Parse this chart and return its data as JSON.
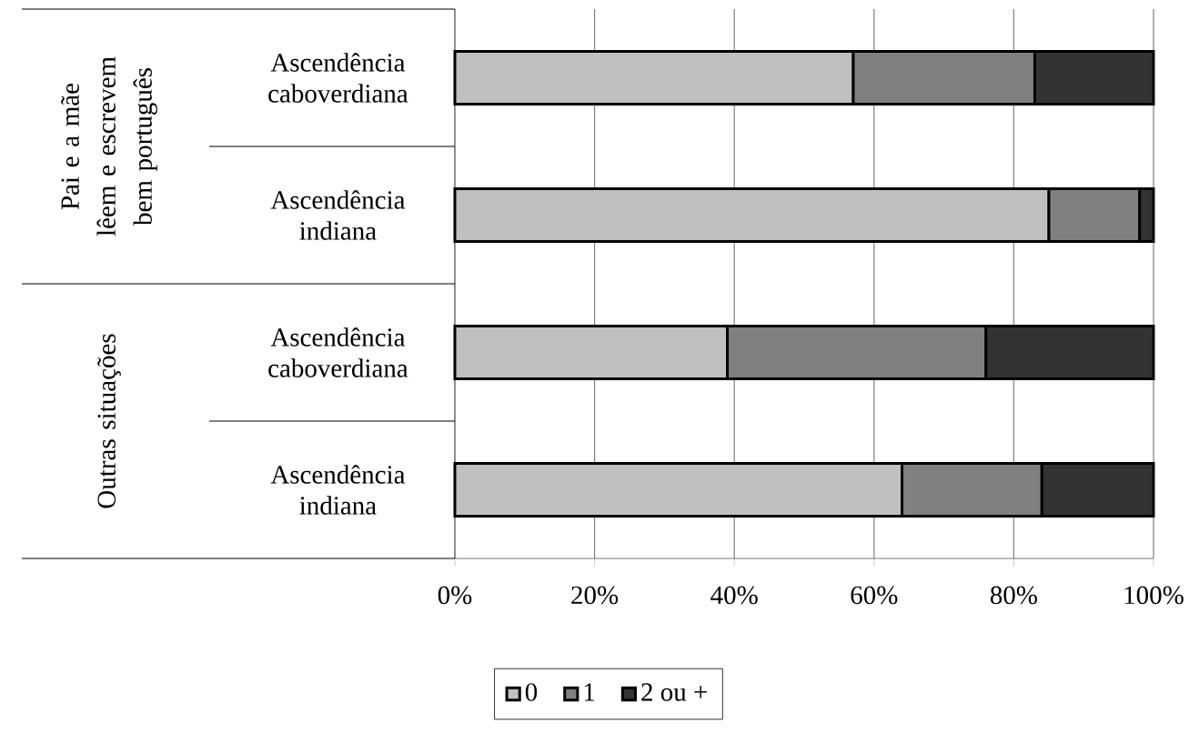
{
  "chart_data": {
    "type": "bar",
    "orientation": "horizontal",
    "stacked": true,
    "categories": [
      "Ascendência caboverdiana",
      "Ascendência indiana",
      "Ascendência caboverdiana",
      "Ascendência indiana"
    ],
    "series": [
      {
        "name": "0",
        "color": "#c0c0c0",
        "values": [
          57,
          85,
          39,
          64
        ]
      },
      {
        "name": "1",
        "color": "#808080",
        "values": [
          26,
          13,
          37,
          20
        ]
      },
      {
        "name": "2 ou +",
        "color": "#333333",
        "values": [
          17,
          2,
          24,
          16
        ]
      }
    ],
    "xlim": [
      0,
      100
    ],
    "xticks": [
      {
        "value": 0,
        "label": "0%"
      },
      {
        "value": 20,
        "label": "20%"
      },
      {
        "value": 40,
        "label": "40%"
      },
      {
        "value": 60,
        "label": "60%"
      },
      {
        "value": 80,
        "label": "80%"
      },
      {
        "value": 100,
        "label": "100%"
      }
    ],
    "grid": "x",
    "legend": "bottom",
    "annotations": [
      "Pai e a mãe lêem e escrevem bem português",
      "Outras situações"
    ]
  }
}
